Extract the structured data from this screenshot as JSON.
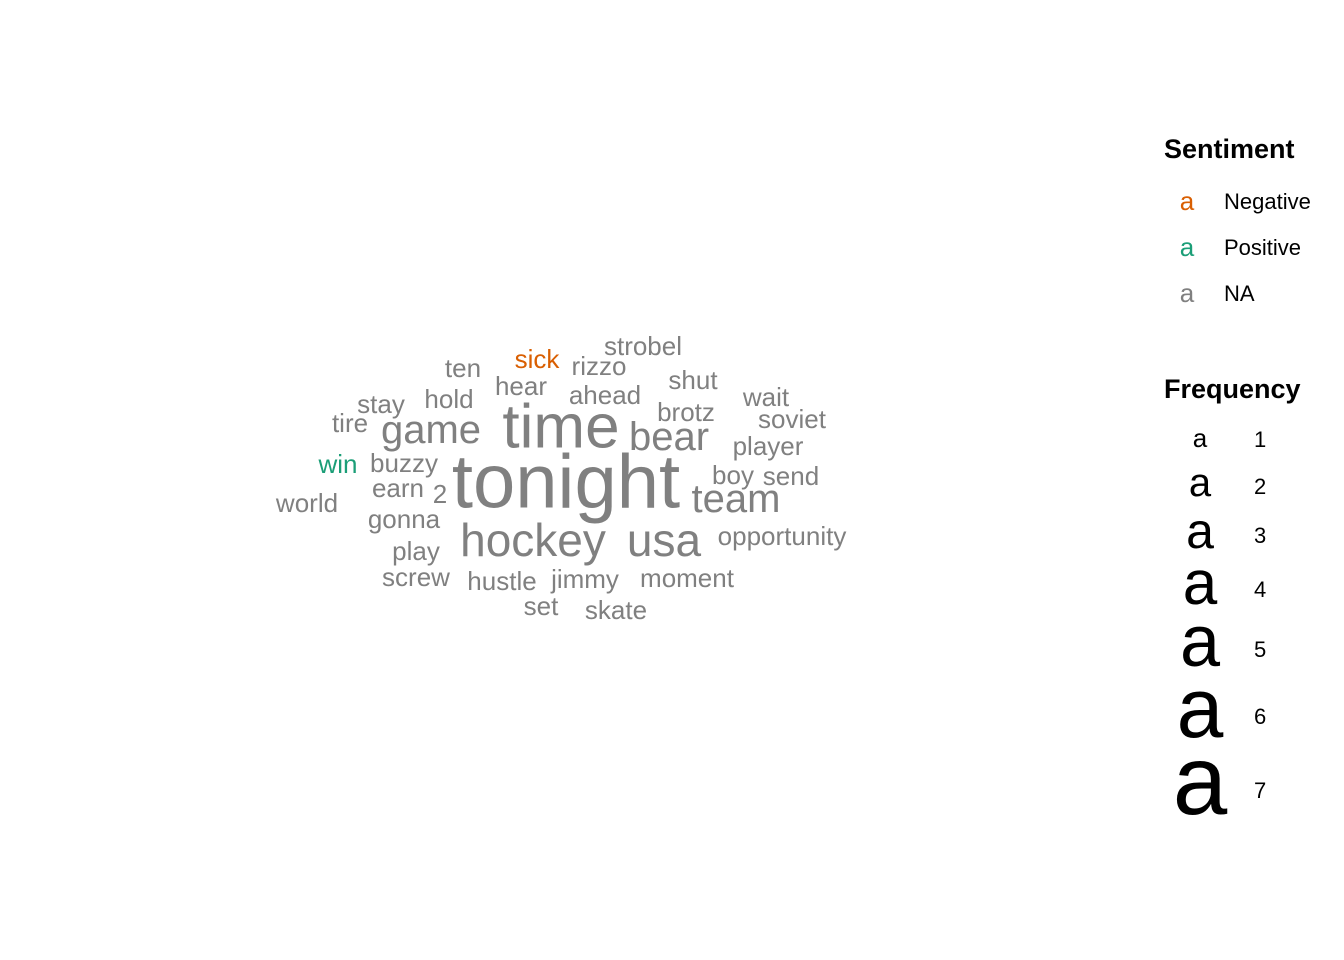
{
  "chart_data": {
    "type": "wordcloud",
    "colors": {
      "Negative": "#D95F02",
      "Positive": "#1B9E77",
      "NA": "#808080"
    },
    "words": [
      {
        "word": "tonight",
        "frequency": 7,
        "sentiment": "NA"
      },
      {
        "word": "time",
        "frequency": 6,
        "sentiment": "NA"
      },
      {
        "word": "hockey",
        "frequency": 5,
        "sentiment": "NA"
      },
      {
        "word": "usa",
        "frequency": 5,
        "sentiment": "NA"
      },
      {
        "word": "game",
        "frequency": 4,
        "sentiment": "NA"
      },
      {
        "word": "bear",
        "frequency": 4,
        "sentiment": "NA"
      },
      {
        "word": "team",
        "frequency": 4,
        "sentiment": "NA"
      },
      {
        "word": "strobel",
        "frequency": 2,
        "sentiment": "NA"
      },
      {
        "word": "sick",
        "frequency": 2,
        "sentiment": "Negative"
      },
      {
        "word": "rizzo",
        "frequency": 2,
        "sentiment": "NA"
      },
      {
        "word": "ten",
        "frequency": 2,
        "sentiment": "NA"
      },
      {
        "word": "hear",
        "frequency": 2,
        "sentiment": "NA"
      },
      {
        "word": "shut",
        "frequency": 2,
        "sentiment": "NA"
      },
      {
        "word": "hold",
        "frequency": 2,
        "sentiment": "NA"
      },
      {
        "word": "ahead",
        "frequency": 2,
        "sentiment": "NA"
      },
      {
        "word": "stay",
        "frequency": 2,
        "sentiment": "NA"
      },
      {
        "word": "wait",
        "frequency": 2,
        "sentiment": "NA"
      },
      {
        "word": "brotz",
        "frequency": 2,
        "sentiment": "NA"
      },
      {
        "word": "tire",
        "frequency": 2,
        "sentiment": "NA"
      },
      {
        "word": "soviet",
        "frequency": 2,
        "sentiment": "NA"
      },
      {
        "word": "player",
        "frequency": 2,
        "sentiment": "NA"
      },
      {
        "word": "win",
        "frequency": 2,
        "sentiment": "Positive"
      },
      {
        "word": "buzzy",
        "frequency": 2,
        "sentiment": "NA"
      },
      {
        "word": "boy",
        "frequency": 2,
        "sentiment": "NA"
      },
      {
        "word": "send",
        "frequency": 2,
        "sentiment": "NA"
      },
      {
        "word": "earn",
        "frequency": 2,
        "sentiment": "NA"
      },
      {
        "word": "2",
        "frequency": 2,
        "sentiment": "NA"
      },
      {
        "word": "world",
        "frequency": 2,
        "sentiment": "NA"
      },
      {
        "word": "gonna",
        "frequency": 2,
        "sentiment": "NA"
      },
      {
        "word": "opportunity",
        "frequency": 2,
        "sentiment": "NA"
      },
      {
        "word": "play",
        "frequency": 2,
        "sentiment": "NA"
      },
      {
        "word": "screw",
        "frequency": 2,
        "sentiment": "NA"
      },
      {
        "word": "hustle",
        "frequency": 2,
        "sentiment": "NA"
      },
      {
        "word": "jimmy",
        "frequency": 2,
        "sentiment": "NA"
      },
      {
        "word": "moment",
        "frequency": 2,
        "sentiment": "NA"
      },
      {
        "word": "set",
        "frequency": 2,
        "sentiment": "NA"
      },
      {
        "word": "skate",
        "frequency": 2,
        "sentiment": "NA"
      }
    ],
    "legend": {
      "sentiment": {
        "title": "Sentiment",
        "glyph": "a",
        "items": [
          "Negative",
          "Positive",
          "NA"
        ]
      },
      "frequency": {
        "title": "Frequency",
        "glyph": "a",
        "items": [
          "1",
          "2",
          "3",
          "4",
          "5",
          "6",
          "7"
        ]
      }
    }
  }
}
